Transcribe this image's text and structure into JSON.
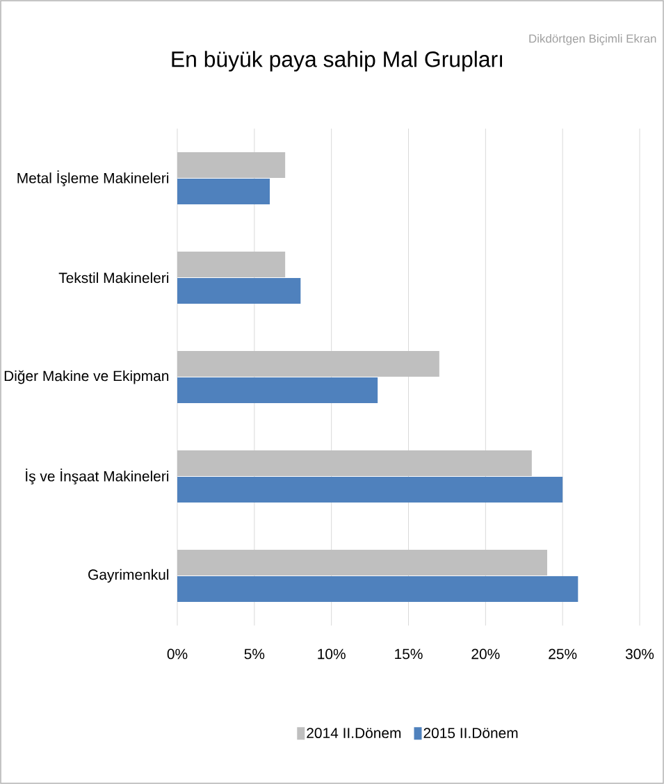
{
  "chart_data": {
    "type": "bar",
    "orientation": "horizontal",
    "title": "En büyük paya sahip Mal Grupları",
    "categories": [
      "Metal İşleme Makineleri",
      "Tekstil Makineleri",
      "Diğer Makine ve Ekipman",
      "İş ve İnşaat Makineleri",
      "Gayrimenkul"
    ],
    "series": [
      {
        "name": "2014 II.Dönem",
        "color": "#bfbfbf",
        "values": [
          7,
          7,
          17,
          23,
          24
        ]
      },
      {
        "name": "2015 II.Dönem",
        "color": "#4f81bd",
        "values": [
          6,
          8,
          13,
          25,
          26
        ]
      }
    ],
    "xlim": [
      0,
      30
    ],
    "xticks": [
      {
        "value": 0,
        "label": "0%"
      },
      {
        "value": 5,
        "label": "5%"
      },
      {
        "value": 10,
        "label": "10%"
      },
      {
        "value": 15,
        "label": "15%"
      },
      {
        "value": 20,
        "label": "20%"
      },
      {
        "value": 25,
        "label": "25%"
      },
      {
        "value": 30,
        "label": "30%"
      }
    ],
    "grid": "x",
    "legend": "bottom",
    "annotations": [
      "Dikdörtgen Biçimli Ekran"
    ]
  }
}
